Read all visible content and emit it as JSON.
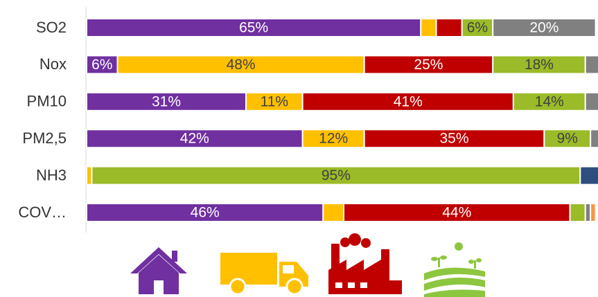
{
  "chart_data": {
    "type": "stacked_bar_horizontal",
    "categories": [
      "SO2",
      "Nox",
      "PM10",
      "PM2,5",
      "NH3",
      "COV…"
    ],
    "xlim": [
      0,
      100
    ],
    "series": [
      {
        "color": "#7030a0",
        "values": [
          65,
          6,
          31,
          42,
          0,
          46
        ],
        "value_labels": [
          "65%",
          "6%",
          "31%",
          "42%",
          null,
          "46%"
        ]
      },
      {
        "color": "#ffc000",
        "values": [
          3,
          48,
          11,
          12,
          1,
          4
        ],
        "value_labels": [
          null,
          "48%",
          "11%",
          "12%",
          null,
          null
        ]
      },
      {
        "color": "#c00000",
        "values": [
          5,
          25,
          41,
          35,
          0,
          44
        ],
        "value_labels": [
          null,
          "25%",
          "41%",
          "35%",
          null,
          "44%"
        ]
      },
      {
        "color": "#9bbb28",
        "values": [
          6,
          18,
          14,
          9,
          95,
          3
        ],
        "value_labels": [
          "6%",
          "18%",
          "14%",
          "9%",
          "95%",
          null
        ]
      },
      {
        "color": "#808080",
        "values": [
          20,
          3,
          3,
          2,
          0,
          1
        ],
        "value_labels": [
          "20%",
          null,
          null,
          null,
          null,
          null
        ]
      },
      {
        "color": "#2e4e7e",
        "values": [
          0,
          0,
          0,
          0,
          4,
          0
        ],
        "value_labels": [
          null,
          null,
          null,
          null,
          null,
          null
        ]
      },
      {
        "color": "#f79646",
        "values": [
          0,
          0,
          0,
          0,
          0,
          1
        ],
        "value_labels": [
          null,
          null,
          null,
          null,
          null,
          null
        ]
      }
    ]
  }
}
